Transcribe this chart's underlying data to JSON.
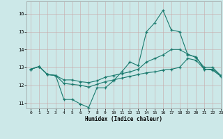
{
  "xlabel": "Humidex (Indice chaleur)",
  "xlim": [
    -0.5,
    23
  ],
  "ylim": [
    10.7,
    16.7
  ],
  "yticks": [
    11,
    12,
    13,
    14,
    15,
    16
  ],
  "xticks": [
    0,
    1,
    2,
    3,
    4,
    5,
    6,
    7,
    8,
    9,
    10,
    11,
    12,
    13,
    14,
    15,
    16,
    17,
    18,
    19,
    20,
    21,
    22,
    23
  ],
  "bg_color": "#cce8e8",
  "grid_color": "#b8d8d8",
  "line_color": "#1a7a6e",
  "line1_x": [
    0,
    1,
    2,
    3,
    4,
    5,
    6,
    7,
    8,
    9,
    10,
    11,
    12,
    13,
    14,
    15,
    16,
    17,
    18,
    19,
    20,
    21,
    22,
    23
  ],
  "line1_y": [
    12.9,
    13.05,
    12.6,
    12.55,
    11.2,
    11.2,
    10.95,
    10.75,
    11.85,
    11.85,
    12.25,
    12.75,
    13.3,
    13.1,
    15.0,
    15.5,
    16.2,
    15.1,
    15.0,
    13.7,
    13.6,
    12.9,
    12.9,
    12.55
  ],
  "line2_x": [
    0,
    1,
    2,
    3,
    4,
    5,
    6,
    7,
    8,
    9,
    10,
    11,
    12,
    13,
    14,
    15,
    16,
    17,
    18,
    19,
    20,
    21,
    22,
    23
  ],
  "line2_y": [
    12.9,
    13.05,
    12.6,
    12.55,
    12.3,
    12.3,
    12.2,
    12.15,
    12.25,
    12.45,
    12.55,
    12.65,
    12.75,
    12.9,
    13.3,
    13.5,
    13.7,
    14.0,
    14.0,
    13.75,
    13.55,
    13.0,
    13.0,
    12.55
  ],
  "line3_x": [
    0,
    1,
    2,
    3,
    4,
    5,
    6,
    7,
    8,
    9,
    10,
    11,
    12,
    13,
    14,
    15,
    16,
    17,
    18,
    19,
    20,
    21,
    22,
    23
  ],
  "line3_y": [
    12.9,
    13.05,
    12.6,
    12.55,
    12.1,
    12.05,
    12.0,
    11.9,
    12.05,
    12.2,
    12.3,
    12.4,
    12.5,
    12.6,
    12.7,
    12.75,
    12.85,
    12.9,
    13.0,
    13.5,
    13.4,
    12.9,
    12.85,
    12.5
  ]
}
